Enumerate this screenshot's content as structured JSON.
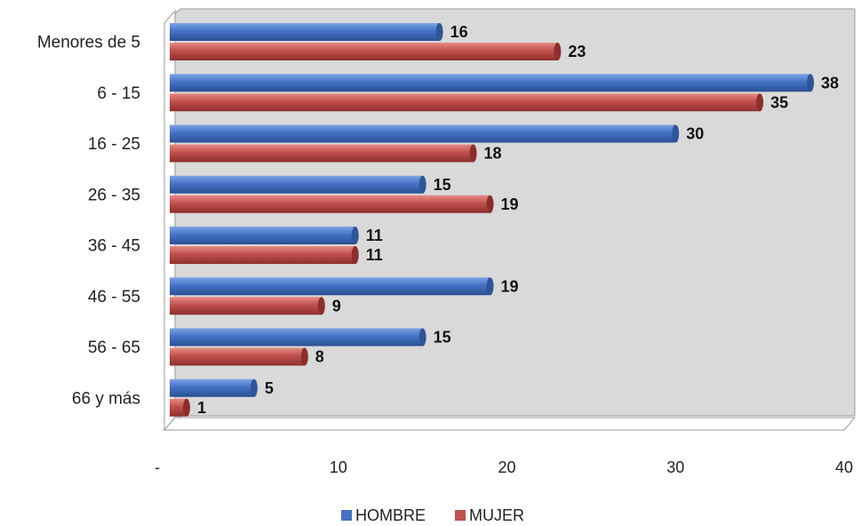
{
  "chart_data": {
    "type": "bar",
    "orientation": "horizontal",
    "categories": [
      "Menores de 5",
      "6 - 15",
      "16 - 25",
      "26 - 35",
      "36 - 45",
      "46 - 55",
      "56 - 65",
      "66 y más"
    ],
    "series": [
      {
        "name": "HOMBRE",
        "color": "#4472C4",
        "values": [
          16,
          38,
          30,
          15,
          11,
          19,
          15,
          5
        ]
      },
      {
        "name": "MUJER",
        "color": "#C0504D",
        "values": [
          23,
          35,
          18,
          19,
          11,
          9,
          8,
          1
        ]
      }
    ],
    "x_ticks": [
      "-",
      "10",
      "20",
      "30",
      "40"
    ],
    "xlim": [
      0,
      40
    ],
    "title": "",
    "xlabel": "",
    "ylabel": "",
    "grid": false,
    "legend": "bottom",
    "wall_color": "#D9D9D9"
  }
}
